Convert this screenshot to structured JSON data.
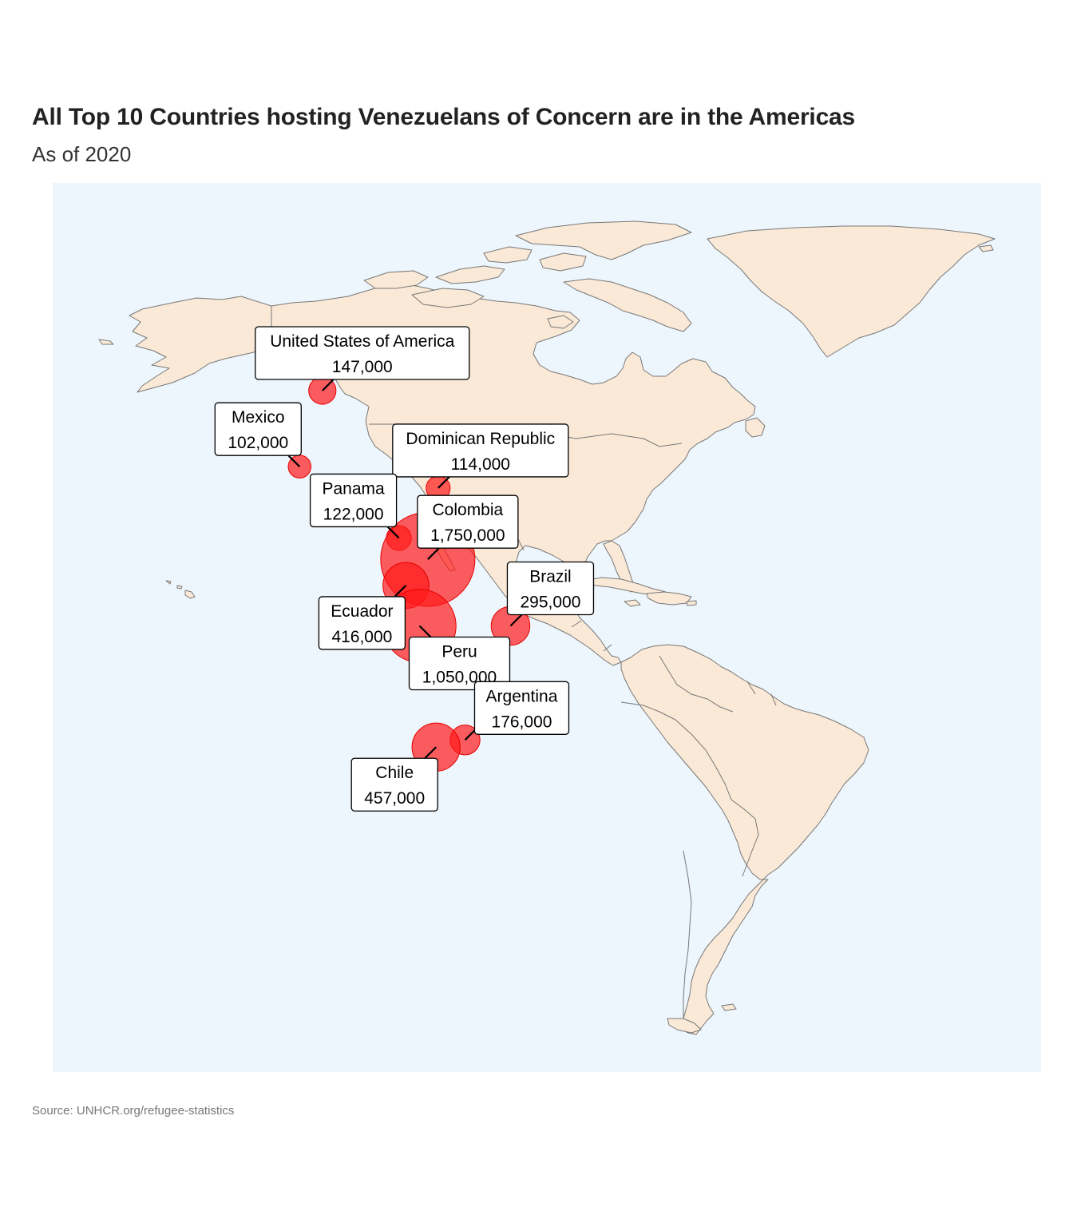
{
  "title": "All Top 10 Countries hosting Venezuelans of Concern are in the Americas",
  "subtitle": "As of 2020",
  "source": "Source: UNHCR.org/refugee-statistics",
  "colors": {
    "ocean": "#eef6fd",
    "land": "#fae9d6",
    "bubble": "#ff1a1a"
  },
  "chart_data": {
    "type": "bubble-map",
    "region": "Americas",
    "value_label": "Venezuelans of Concern",
    "points": [
      {
        "country": "United States of America",
        "value": 147000,
        "display": "147,000",
        "lon": -98.5,
        "lat": 39.5
      },
      {
        "country": "Mexico",
        "value": 102000,
        "display": "102,000",
        "lon": -104.0,
        "lat": 23.5
      },
      {
        "country": "Dominican Republic",
        "value": 114000,
        "display": "114,000",
        "lon": -70.5,
        "lat": 19.0
      },
      {
        "country": "Panama",
        "value": 122000,
        "display": "122,000",
        "lon": -80.0,
        "lat": 8.5
      },
      {
        "country": "Colombia",
        "value": 1750000,
        "display": "1,750,000",
        "lon": -73.0,
        "lat": 4.0
      },
      {
        "country": "Ecuador",
        "value": 416000,
        "display": "416,000",
        "lon": -78.3,
        "lat": -1.5
      },
      {
        "country": "Brazil",
        "value": 295000,
        "display": "295,000",
        "lon": -53.0,
        "lat": -10.0
      },
      {
        "country": "Peru",
        "value": 1050000,
        "display": "1,050,000",
        "lon": -75.0,
        "lat": -10.0
      },
      {
        "country": "Argentina",
        "value": 176000,
        "display": "176,000",
        "lon": -64.0,
        "lat": -34.0
      },
      {
        "country": "Chile",
        "value": 457000,
        "display": "457,000",
        "lon": -71.0,
        "lat": -35.5
      }
    ]
  }
}
